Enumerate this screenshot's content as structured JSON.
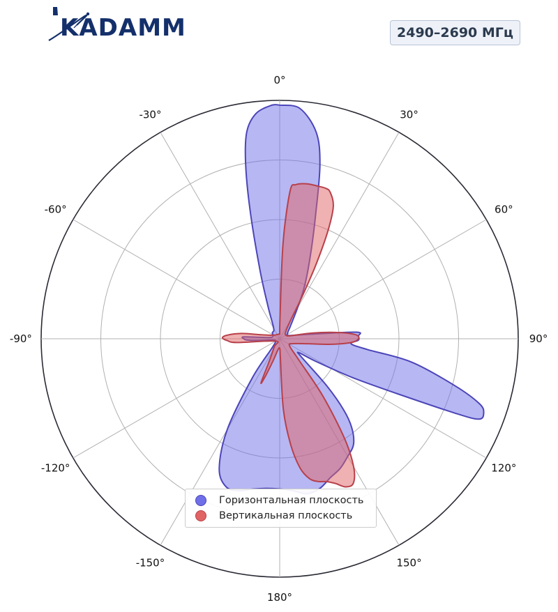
{
  "brand": {
    "name": "KADAMM",
    "color": "#14306b"
  },
  "badge": {
    "text": "2490–2690 МГц"
  },
  "chart_data": {
    "type": "polar-area",
    "theta_zero": "top",
    "direction": "clockwise",
    "theta_ticks": [
      "0°",
      "30°",
      "60°",
      "90°",
      "120°",
      "150°",
      "180°",
      "-150°",
      "-120°",
      "-90°",
      "-60°",
      "-30°"
    ],
    "r_grid": [
      0.25,
      0.5,
      0.75,
      1.0
    ],
    "r_max": 1.0,
    "grid": true,
    "legend_position": "bottom-center",
    "series": [
      {
        "name": "Горизонтальная плоскость",
        "color": "#6f6fe8",
        "points": [
          [
            0,
            0.98
          ],
          [
            5,
            0.97
          ],
          [
            10,
            0.88
          ],
          [
            13,
            0.75
          ],
          [
            16,
            0.55
          ],
          [
            20,
            0.38
          ],
          [
            25,
            0.25
          ],
          [
            30,
            0.15
          ],
          [
            40,
            0.07
          ],
          [
            55,
            0.04
          ],
          [
            70,
            0.04
          ],
          [
            80,
            0.1
          ],
          [
            85,
            0.32
          ],
          [
            88,
            0.33
          ],
          [
            91,
            0.33
          ],
          [
            94,
            0.3
          ],
          [
            97,
            0.37
          ],
          [
            100,
            0.56
          ],
          [
            105,
            0.76
          ],
          [
            108,
            0.88
          ],
          [
            110,
            0.91
          ],
          [
            112,
            0.9
          ],
          [
            113,
            0.8
          ],
          [
            115,
            0.55
          ],
          [
            118,
            0.35
          ],
          [
            122,
            0.18
          ],
          [
            126,
            0.1
          ],
          [
            130,
            0.12
          ],
          [
            135,
            0.28
          ],
          [
            138,
            0.4
          ],
          [
            141,
            0.48
          ],
          [
            145,
            0.54
          ],
          [
            150,
            0.57
          ],
          [
            155,
            0.6
          ],
          [
            160,
            0.62
          ],
          [
            165,
            0.65
          ],
          [
            170,
            0.66
          ],
          [
            175,
            0.64
          ],
          [
            180,
            0.63
          ],
          [
            185,
            0.63
          ],
          [
            190,
            0.64
          ],
          [
            195,
            0.66
          ],
          [
            200,
            0.66
          ],
          [
            205,
            0.6
          ],
          [
            210,
            0.44
          ],
          [
            215,
            0.2
          ],
          [
            220,
            0.05
          ],
          [
            240,
            0.02
          ],
          [
            260,
            0.03
          ],
          [
            266,
            0.1
          ],
          [
            268,
            0.14
          ],
          [
            270,
            0.15
          ],
          [
            273,
            0.15
          ],
          [
            276,
            0.05
          ],
          [
            290,
            0.03
          ],
          [
            310,
            0.04
          ],
          [
            330,
            0.05
          ],
          [
            340,
            0.14
          ],
          [
            344,
            0.3
          ],
          [
            347,
            0.55
          ],
          [
            349,
            0.75
          ],
          [
            351,
            0.88
          ],
          [
            354,
            0.95
          ],
          [
            358,
            0.98
          ],
          [
            360,
            0.98
          ]
        ]
      },
      {
        "name": "Вертикальная плоскость",
        "color": "#e06464",
        "points": [
          [
            0,
            0.02
          ],
          [
            1,
            0.1
          ],
          [
            2,
            0.4
          ],
          [
            4,
            0.62
          ],
          [
            6,
            0.65
          ],
          [
            10,
            0.66
          ],
          [
            14,
            0.66
          ],
          [
            17,
            0.66
          ],
          [
            19,
            0.65
          ],
          [
            22,
            0.6
          ],
          [
            24,
            0.5
          ],
          [
            26,
            0.35
          ],
          [
            28,
            0.2
          ],
          [
            30,
            0.1
          ],
          [
            40,
            0.04
          ],
          [
            60,
            0.03
          ],
          [
            75,
            0.05
          ],
          [
            80,
            0.14
          ],
          [
            84,
            0.25
          ],
          [
            87,
            0.32
          ],
          [
            90,
            0.33
          ],
          [
            93,
            0.3
          ],
          [
            96,
            0.22
          ],
          [
            100,
            0.12
          ],
          [
            110,
            0.06
          ],
          [
            125,
            0.05
          ],
          [
            138,
            0.12
          ],
          [
            143,
            0.3
          ],
          [
            147,
            0.5
          ],
          [
            150,
            0.62
          ],
          [
            153,
            0.68
          ],
          [
            156,
            0.68
          ],
          [
            159,
            0.65
          ],
          [
            162,
            0.63
          ],
          [
            165,
            0.62
          ],
          [
            168,
            0.6
          ],
          [
            171,
            0.55
          ],
          [
            174,
            0.45
          ],
          [
            177,
            0.3
          ],
          [
            178,
            0.08
          ],
          [
            180,
            0.04
          ],
          [
            190,
            0.05
          ],
          [
            197,
            0.1
          ],
          [
            201,
            0.17
          ],
          [
            203,
            0.2
          ],
          [
            205,
            0.1
          ],
          [
            215,
            0.04
          ],
          [
            240,
            0.02
          ],
          [
            265,
            0.18
          ],
          [
            268,
            0.22
          ],
          [
            271,
            0.24
          ],
          [
            274,
            0.22
          ],
          [
            278,
            0.16
          ],
          [
            282,
            0.08
          ],
          [
            300,
            0.03
          ],
          [
            340,
            0.02
          ],
          [
            358,
            0.02
          ],
          [
            360,
            0.02
          ]
        ]
      }
    ]
  }
}
